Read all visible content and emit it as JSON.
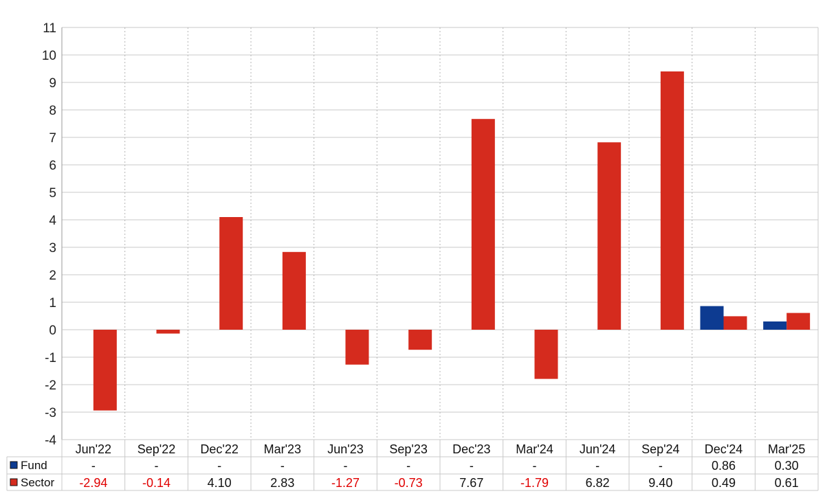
{
  "chart_data": {
    "type": "bar",
    "categories": [
      "Jun'22",
      "Sep'22",
      "Dec'22",
      "Mar'23",
      "Jun'23",
      "Sep'23",
      "Dec'23",
      "Mar'24",
      "Jun'24",
      "Sep'24",
      "Dec'24",
      "Mar'25"
    ],
    "series": [
      {
        "name": "Fund",
        "color": "#0d3b91",
        "values": [
          null,
          null,
          null,
          null,
          null,
          null,
          null,
          null,
          null,
          null,
          0.86,
          0.3
        ],
        "labels": [
          "-",
          "-",
          "-",
          "-",
          "-",
          "-",
          "-",
          "-",
          "-",
          "-",
          "0.86",
          "0.30"
        ]
      },
      {
        "name": "Sector",
        "color": "#d52b1e",
        "values": [
          -2.94,
          -0.14,
          4.1,
          2.83,
          -1.27,
          -0.73,
          7.67,
          -1.79,
          6.82,
          9.4,
          0.49,
          0.61
        ],
        "labels": [
          "-2.94",
          "-0.14",
          "4.10",
          "2.83",
          "-1.27",
          "-0.73",
          "7.67",
          "-1.79",
          "6.82",
          "9.40",
          "0.49",
          "0.61"
        ]
      }
    ],
    "ylim": [
      -4,
      11
    ],
    "yticks": [
      -4,
      -3,
      -2,
      -1,
      0,
      1,
      2,
      3,
      4,
      5,
      6,
      7,
      8,
      9,
      10,
      11
    ],
    "title": "",
    "xlabel": "",
    "ylabel": "",
    "grid": true,
    "negative_label_color": "#e00000",
    "legend": "data-table-below"
  }
}
